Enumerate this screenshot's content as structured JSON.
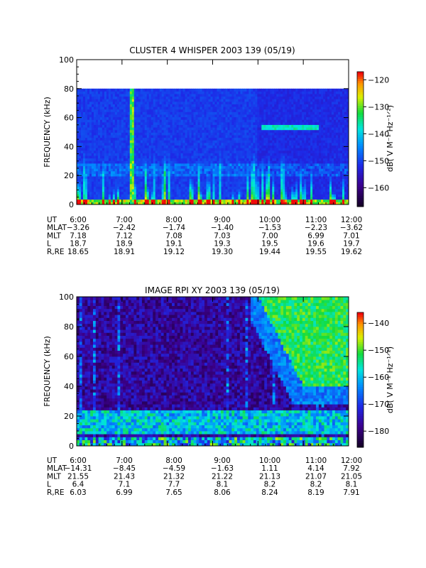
{
  "chart_data": [
    {
      "type": "heatmap",
      "title": "CLUSTER 4 WHISPER 2003 139 (05/19)",
      "ylabel": "FREQUENCY (kHz)",
      "ylim": [
        0,
        100
      ],
      "yticks": [
        "0",
        "20",
        "40",
        "60",
        "80",
        "100"
      ],
      "xticks": [
        "6:00",
        "7:00",
        "8:00",
        "9:00",
        "10:00",
        "11:00",
        "12:00"
      ],
      "xlim": [
        "6:00",
        "12:00"
      ],
      "data_top_khz": 80,
      "colorbar": {
        "label": "dB( V M⁻¹ Hz⁻¹ᐟ²)",
        "ticks": [
          "-120",
          "-130",
          "-140",
          "-150",
          "-160"
        ],
        "range": [
          -167,
          -117
        ]
      },
      "features": [
        {
          "desc": "vertical burst",
          "time": "7:13"
        },
        {
          "desc": "emission band",
          "time_range": [
            "10:05",
            "11:20"
          ],
          "khz": 53
        }
      ],
      "ephemeris": [
        {
          "label": "UT",
          "values": [
            "6:00",
            "7:00",
            "8:00",
            "9:00",
            "10:00",
            "11:00",
            "12:00"
          ]
        },
        {
          "label": "MLAT",
          "values": [
            "−3.26",
            "−2.42",
            "−1.74",
            "−1.40",
            "−1.53",
            "−2.23",
            "−3.62"
          ]
        },
        {
          "label": "MLT",
          "values": [
            "7.18",
            "7.12",
            "7.08",
            "7.03",
            "7.00",
            "6.99",
            "7.01"
          ]
        },
        {
          "label": "L",
          "values": [
            "18.7",
            "18.9",
            "19.1",
            "19.3",
            "19.5",
            "19.6",
            "19.7"
          ]
        },
        {
          "label": "R,RE",
          "values": [
            "18.65",
            "18.91",
            "19.12",
            "19.30",
            "19.44",
            "19.55",
            "19.62"
          ]
        }
      ]
    },
    {
      "type": "heatmap",
      "title": "IMAGE RPI XY 2003 139 (05/19)",
      "ylabel": "FREQUENCY (kHz)",
      "ylim": [
        0,
        100
      ],
      "yticks": [
        "0",
        "20",
        "40",
        "60",
        "80",
        "100"
      ],
      "xticks": [
        "6:00",
        "7:00",
        "8:00",
        "9:00",
        "10:00",
        "11:00",
        "12:00"
      ],
      "xlim": [
        "6:00",
        "12:00"
      ],
      "colorbar": {
        "label": "dB( V M⁻¹ Hz⁻¹ᐟ²)",
        "ticks": [
          "-140",
          "-150",
          "-160",
          "-170",
          "-180"
        ],
        "range": [
          -186,
          -136
        ]
      },
      "features": [
        {
          "desc": "enhanced region upper right",
          "time_range": [
            "10:00",
            "12:00"
          ],
          "khz_range": [
            40,
            100
          ]
        },
        {
          "desc": "emission band",
          "khz_range": [
            8,
            25
          ]
        }
      ],
      "ephemeris": [
        {
          "label": "UT",
          "values": [
            "6:00",
            "7:00",
            "8:00",
            "9:00",
            "10:00",
            "11:00",
            "12:00"
          ]
        },
        {
          "label": "MLAT",
          "values": [
            "−14.31",
            "−8.45",
            "−4.59",
            "−1.63",
            "1.11",
            "4.14",
            "7.92"
          ]
        },
        {
          "label": "MLT",
          "values": [
            "21.55",
            "21.43",
            "21.32",
            "21.22",
            "21.13",
            "21.07",
            "21.05"
          ]
        },
        {
          "label": "L",
          "values": [
            "6.4",
            "7.1",
            "7.7",
            "8.1",
            "8.2",
            "8.2",
            "8.1"
          ]
        },
        {
          "label": "R,RE",
          "values": [
            "6.03",
            "6.99",
            "7.65",
            "8.06",
            "8.24",
            "8.19",
            "7.91"
          ]
        }
      ]
    }
  ]
}
